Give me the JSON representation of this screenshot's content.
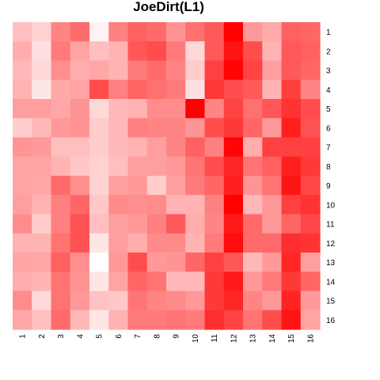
{
  "chart_data": {
    "type": "heatmap",
    "title": "JoeDirt(L1)",
    "xlabel": "",
    "ylabel": "",
    "x_categories": [
      "1",
      "2",
      "3",
      "4",
      "5",
      "6",
      "7",
      "8",
      "9",
      "10",
      "11",
      "12",
      "13",
      "14",
      "15",
      "16"
    ],
    "y_categories": [
      "1",
      "2",
      "3",
      "4",
      "5",
      "6",
      "7",
      "8",
      "9",
      "10",
      "11",
      "12",
      "13",
      "14",
      "15",
      "16"
    ],
    "value_range": [
      0,
      1
    ],
    "color_low": "#ffffff",
    "color_high": "#ff0000",
    "grid": false,
    "legend": "none",
    "values": [
      [
        0.25,
        0.18,
        0.48,
        0.58,
        0.05,
        0.5,
        0.62,
        0.58,
        0.42,
        0.56,
        0.65,
        1.0,
        0.4,
        0.33,
        0.62,
        0.6
      ],
      [
        0.32,
        0.12,
        0.52,
        0.36,
        0.25,
        0.3,
        0.66,
        0.7,
        0.52,
        0.15,
        0.65,
        0.92,
        0.7,
        0.3,
        0.65,
        0.62
      ],
      [
        0.28,
        0.15,
        0.44,
        0.32,
        0.35,
        0.3,
        0.52,
        0.58,
        0.48,
        0.2,
        0.75,
        0.98,
        0.74,
        0.38,
        0.65,
        0.6
      ],
      [
        0.3,
        0.1,
        0.34,
        0.36,
        0.7,
        0.5,
        0.6,
        0.56,
        0.52,
        0.12,
        0.78,
        0.7,
        0.65,
        0.3,
        0.76,
        0.48
      ],
      [
        0.38,
        0.38,
        0.35,
        0.42,
        0.15,
        0.28,
        0.3,
        0.45,
        0.45,
        1.0,
        0.48,
        0.74,
        0.56,
        0.66,
        0.8,
        0.7
      ],
      [
        0.2,
        0.28,
        0.4,
        0.42,
        0.2,
        0.28,
        0.5,
        0.48,
        0.48,
        0.42,
        0.7,
        0.78,
        0.6,
        0.4,
        0.88,
        0.68
      ],
      [
        0.42,
        0.4,
        0.25,
        0.25,
        0.2,
        0.28,
        0.3,
        0.38,
        0.48,
        0.62,
        0.5,
        0.98,
        0.32,
        0.75,
        0.75,
        0.75
      ],
      [
        0.36,
        0.36,
        0.3,
        0.22,
        0.18,
        0.25,
        0.38,
        0.38,
        0.4,
        0.54,
        0.7,
        0.85,
        0.55,
        0.62,
        0.88,
        0.78
      ],
      [
        0.36,
        0.35,
        0.58,
        0.44,
        0.18,
        0.38,
        0.4,
        0.2,
        0.38,
        0.52,
        0.6,
        0.88,
        0.42,
        0.55,
        0.92,
        0.72
      ],
      [
        0.38,
        0.3,
        0.5,
        0.6,
        0.22,
        0.46,
        0.44,
        0.45,
        0.3,
        0.3,
        0.5,
        1.0,
        0.28,
        0.4,
        0.75,
        0.8
      ],
      [
        0.45,
        0.2,
        0.5,
        0.68,
        0.25,
        0.38,
        0.4,
        0.5,
        0.65,
        0.32,
        0.48,
        0.9,
        0.58,
        0.4,
        0.6,
        0.72
      ],
      [
        0.3,
        0.3,
        0.55,
        0.68,
        0.1,
        0.38,
        0.32,
        0.46,
        0.46,
        0.3,
        0.52,
        0.95,
        0.58,
        0.58,
        0.82,
        0.8
      ],
      [
        0.36,
        0.35,
        0.62,
        0.44,
        0.0,
        0.4,
        0.7,
        0.4,
        0.42,
        0.6,
        0.75,
        0.66,
        0.28,
        0.4,
        0.85,
        0.38
      ],
      [
        0.32,
        0.3,
        0.55,
        0.42,
        0.1,
        0.36,
        0.6,
        0.55,
        0.28,
        0.28,
        0.78,
        0.9,
        0.4,
        0.52,
        0.78,
        0.6
      ],
      [
        0.45,
        0.15,
        0.55,
        0.4,
        0.24,
        0.22,
        0.54,
        0.48,
        0.46,
        0.4,
        0.78,
        0.85,
        0.48,
        0.4,
        0.86,
        0.4
      ],
      [
        0.35,
        0.25,
        0.58,
        0.28,
        0.1,
        0.3,
        0.52,
        0.52,
        0.54,
        0.52,
        0.82,
        0.74,
        0.55,
        0.7,
        0.92,
        0.36
      ]
    ]
  }
}
